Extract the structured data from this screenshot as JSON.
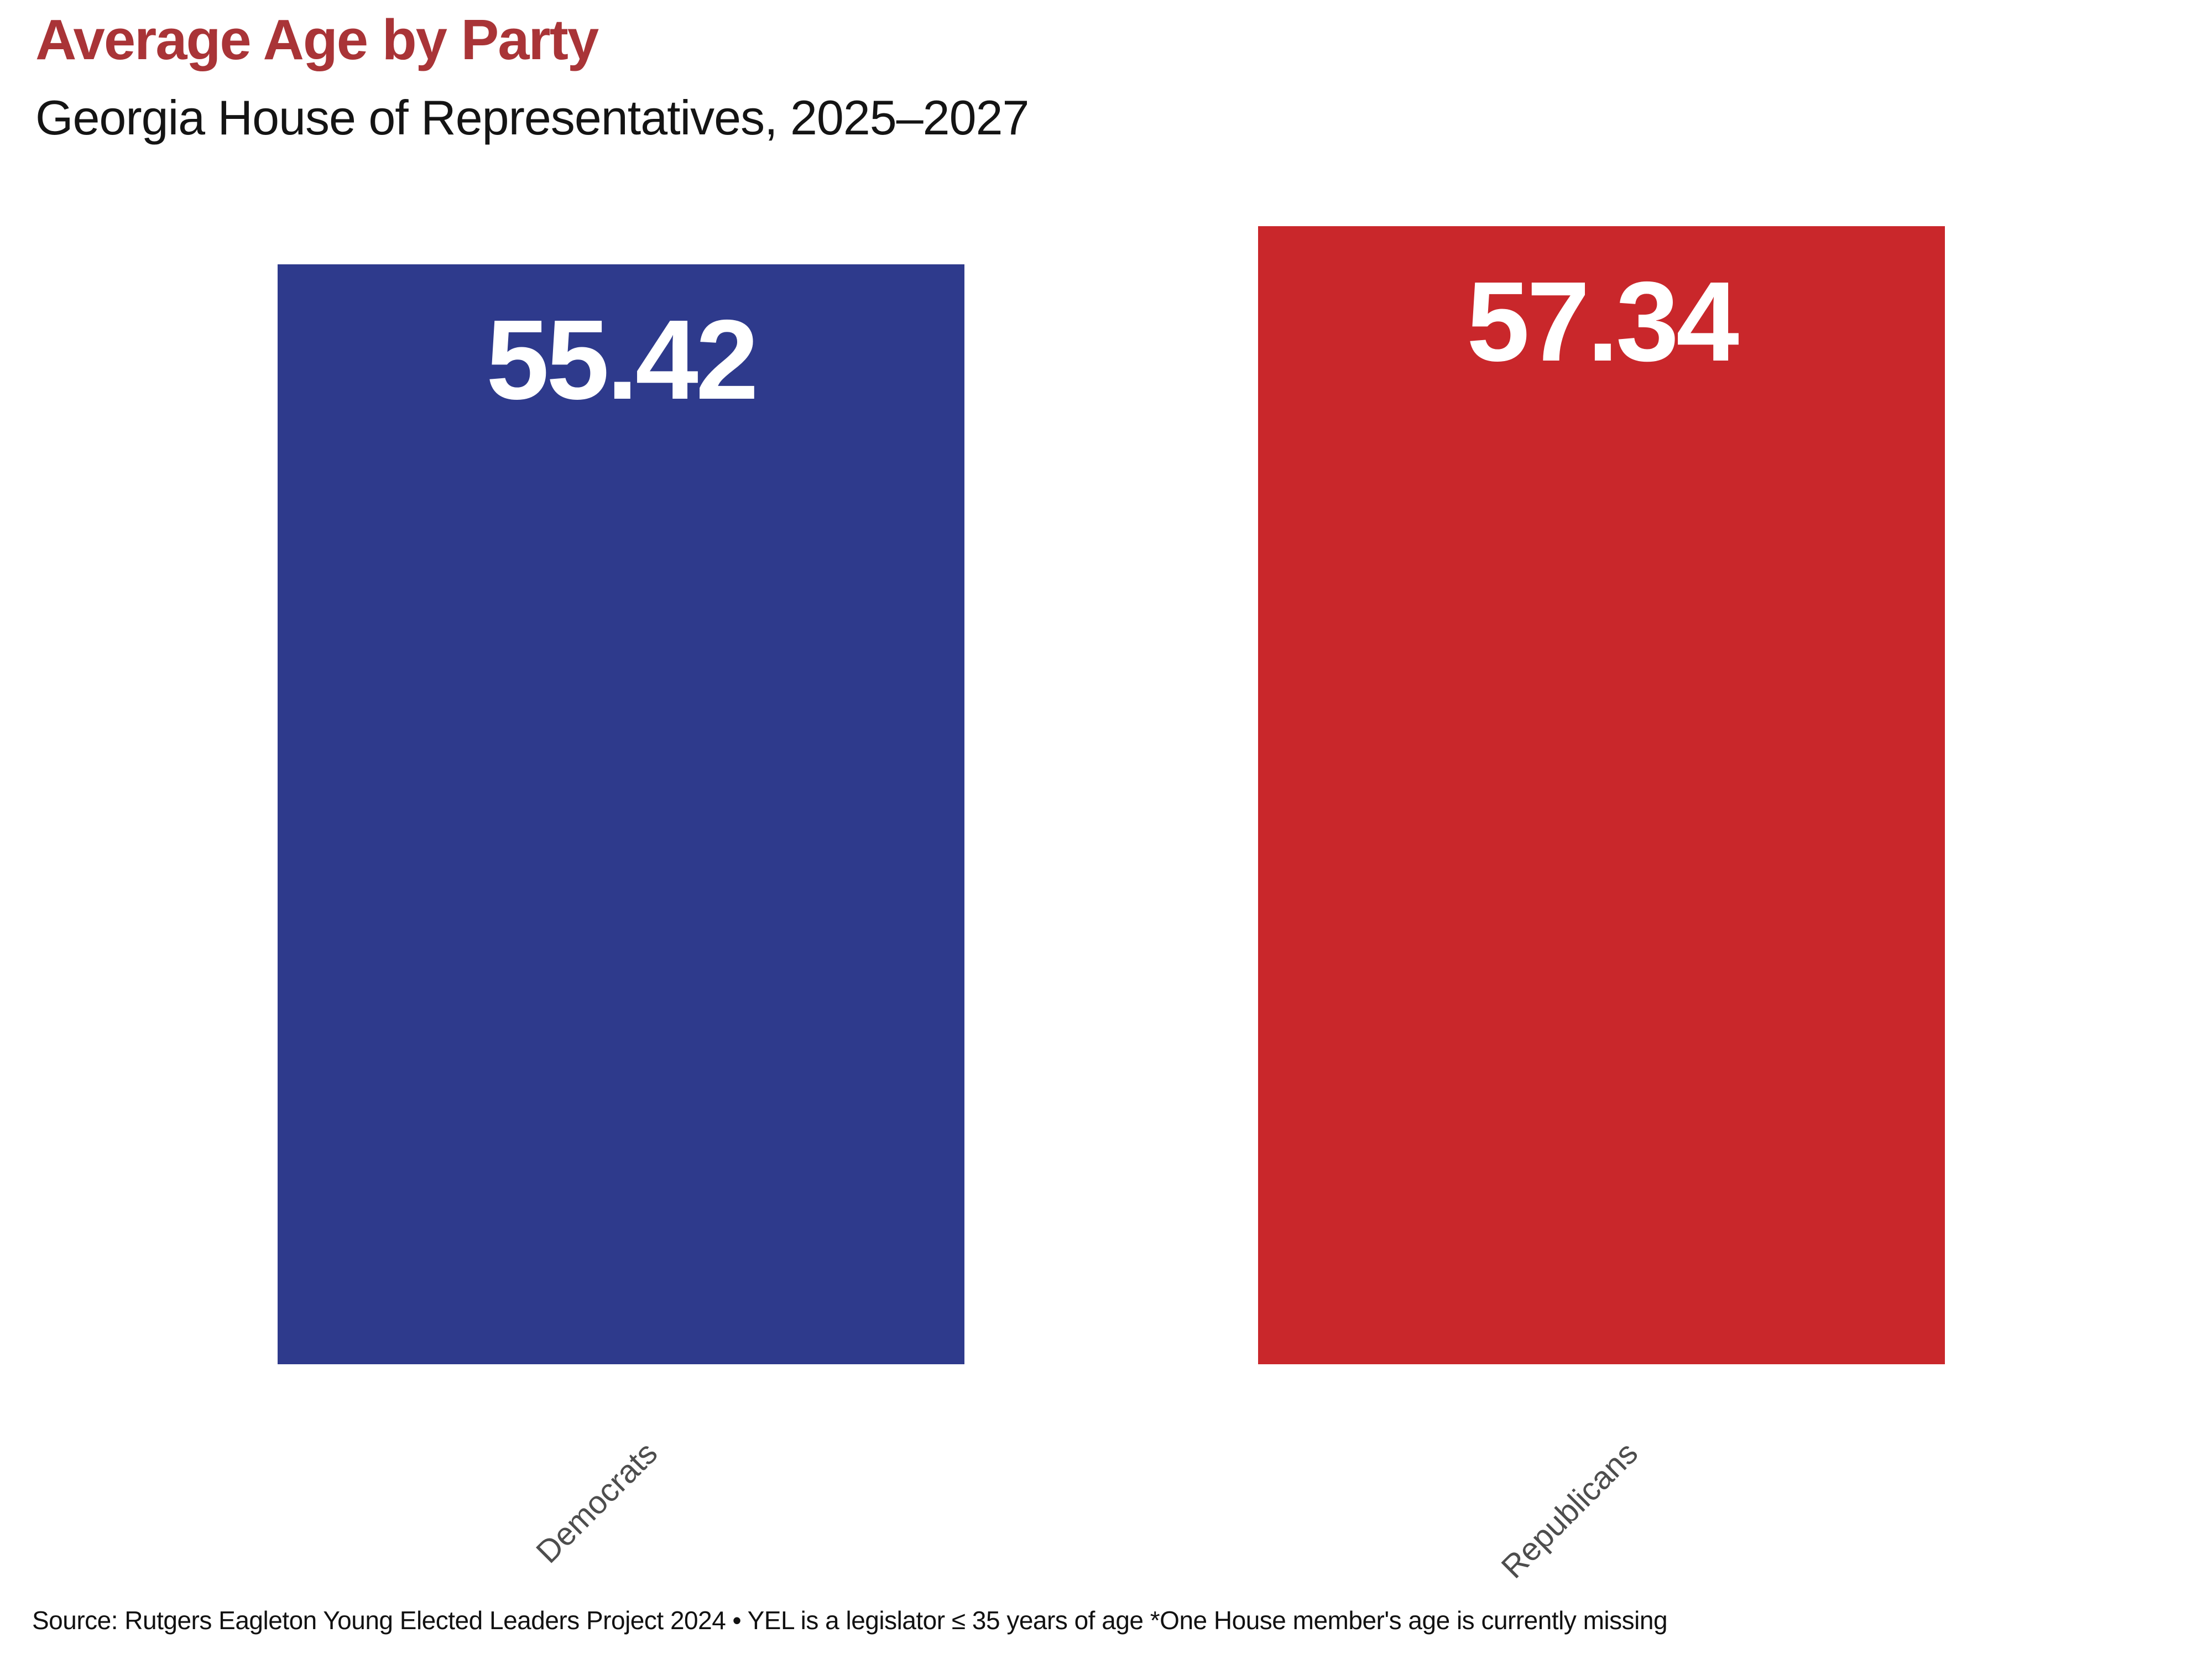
{
  "chart_data": {
    "type": "bar",
    "title": "Average Age by Party",
    "subtitle": "Georgia House of Representatives, 2025–2027",
    "categories": [
      "Democrats",
      "Republicans"
    ],
    "values": [
      55.42,
      57.34
    ],
    "value_labels": [
      "55.42",
      "57.34"
    ],
    "series": [
      {
        "name": "Democrats",
        "value": 55.42
      },
      {
        "name": "Republicans",
        "value": 57.34
      }
    ],
    "bar_colors": [
      "#2E3A8C",
      "#C9272B"
    ],
    "title_color": "#A93437",
    "subtitle_color": "#141414",
    "value_label_color": "#FFFFFF",
    "tick_label_color": "#4D4D4D",
    "source_color": "#111111",
    "ylim": [
      0,
      60
    ],
    "grid": false,
    "legend_position": "none",
    "tick_label_rotation_deg": 45,
    "value_labels_inside_top": true,
    "source_note": "Source: Rutgers Eagleton Young Elected Leaders Project 2024 • YEL is a legislator ≤ 35 years of age *One House member's age is currently missing"
  }
}
